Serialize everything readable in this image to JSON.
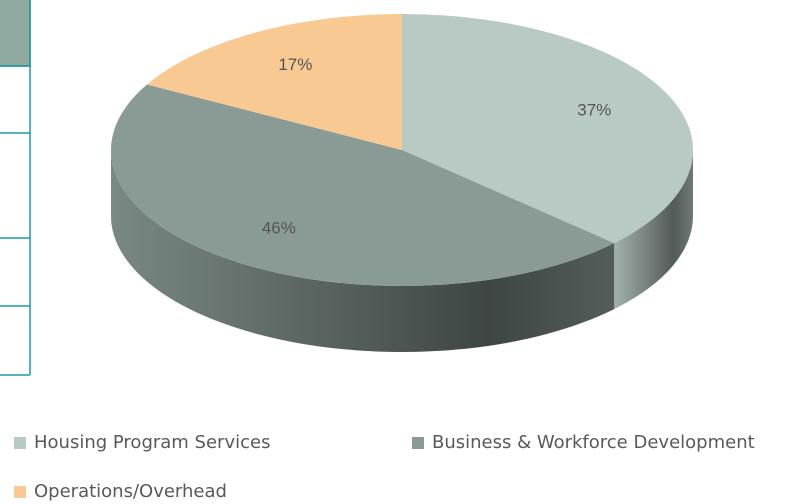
{
  "chart_data": {
    "type": "pie",
    "three_d": true,
    "categories": [
      "Housing Program Services",
      "Business & Workforce Development",
      "Operations/Overhead"
    ],
    "values": [
      37,
      46,
      17
    ],
    "value_labels": [
      "37%",
      "46%",
      "17%"
    ],
    "colors": [
      "#b9c9c3",
      "#8a9b95",
      "#f8c992"
    ]
  }
}
